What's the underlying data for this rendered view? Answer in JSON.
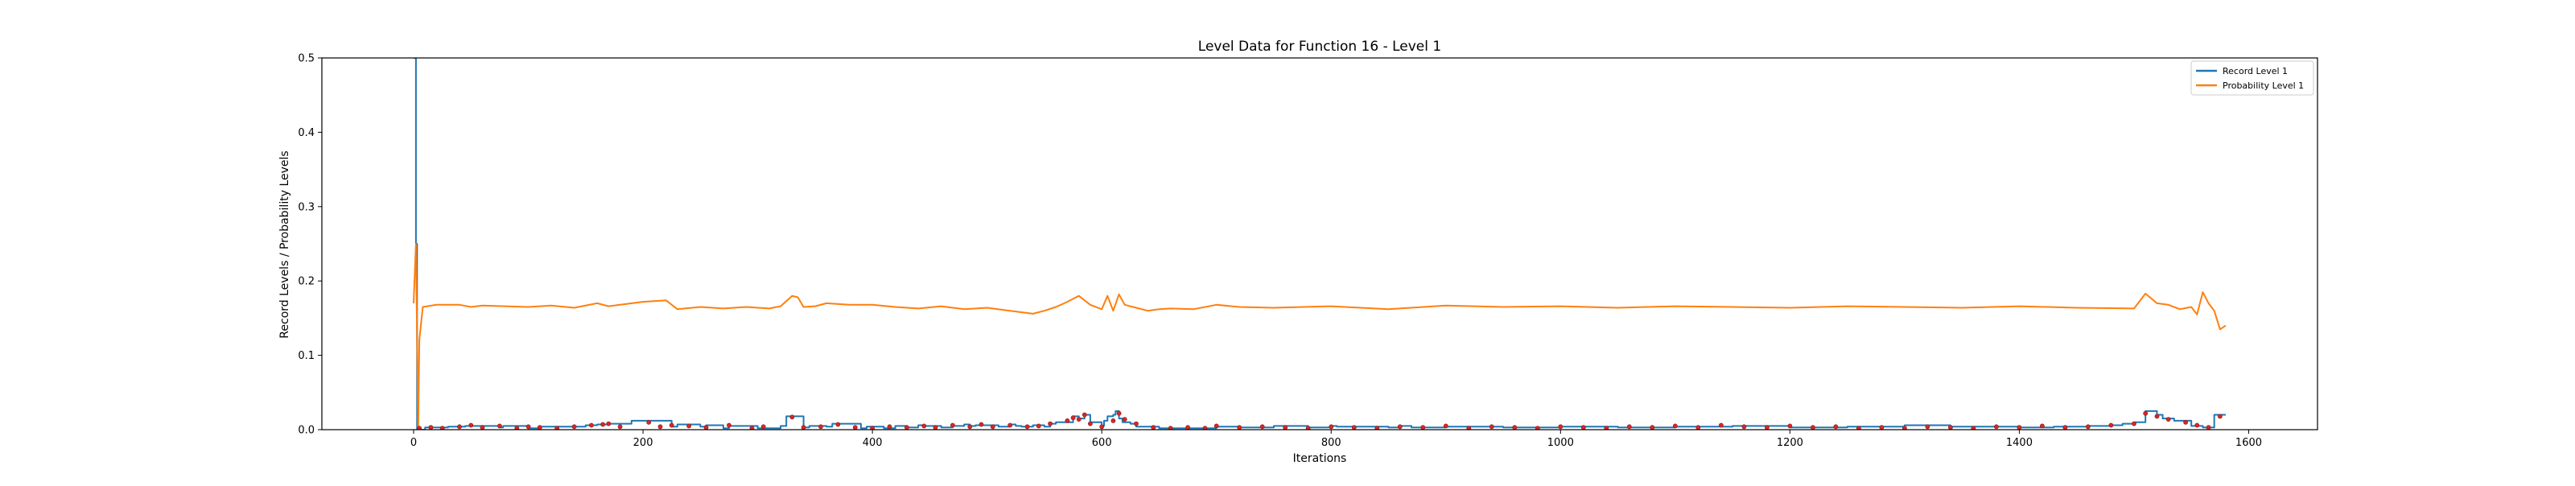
{
  "chart_data": {
    "type": "line",
    "title": "Level Data for Function 16 - Level 1",
    "xlabel": "Iterations",
    "ylabel": "Record Levels / Probability Levels",
    "xlim": [
      -80,
      1660
    ],
    "ylim": [
      0,
      0.5
    ],
    "x_ticks": [
      0,
      200,
      400,
      600,
      800,
      1000,
      1200,
      1400,
      1600
    ],
    "y_ticks": [
      0.0,
      0.1,
      0.2,
      0.3,
      0.4,
      0.5
    ],
    "x_tick_labels": [
      "0",
      "200",
      "400",
      "600",
      "800",
      "1000",
      "1200",
      "1400",
      "1600"
    ],
    "y_tick_labels": [
      "0.0",
      "0.1",
      "0.2",
      "0.3",
      "0.4",
      "0.5"
    ],
    "grid": false,
    "legend": {
      "position": "top-right",
      "entries": [
        "Record Level 1",
        "Probability Level 1"
      ]
    },
    "colors": {
      "record": "#1f77b4",
      "probability": "#ff7f0e",
      "marker": "#d62728"
    },
    "series": [
      {
        "name": "Record Level 1",
        "style": "step",
        "x": [
          0,
          2,
          3,
          10,
          30,
          45,
          50,
          75,
          78,
          100,
          110,
          140,
          150,
          160,
          170,
          185,
          190,
          200,
          205,
          225,
          230,
          250,
          255,
          270,
          275,
          300,
          320,
          325,
          330,
          335,
          340,
          345,
          360,
          365,
          370,
          390,
          395,
          410,
          420,
          430,
          440,
          445,
          460,
          470,
          480,
          485,
          490,
          510,
          520,
          525,
          530,
          540,
          550,
          555,
          560,
          575,
          580,
          585,
          590,
          600,
          602,
          605,
          610,
          612,
          615,
          618,
          625,
          630,
          650,
          700,
          720,
          750,
          780,
          800,
          805,
          850,
          860,
          870,
          900,
          950,
          1000,
          1050,
          1100,
          1150,
          1200,
          1250,
          1300,
          1320,
          1340,
          1400,
          1430,
          1460,
          1480,
          1490,
          1500,
          1510,
          1520,
          1525,
          1535,
          1540,
          1550,
          1560,
          1570,
          1580
        ],
        "y": [
          0.5,
          0.25,
          0.0,
          0.003,
          0.004,
          0.005,
          0.005,
          0.003,
          0.005,
          0.002,
          0.004,
          0.004,
          0.006,
          0.007,
          0.008,
          0.008,
          0.012,
          0.012,
          0.012,
          0.004,
          0.007,
          0.004,
          0.006,
          0.002,
          0.005,
          0.002,
          0.005,
          0.018,
          0.018,
          0.018,
          0.003,
          0.005,
          0.004,
          0.008,
          0.008,
          0.002,
          0.004,
          0.002,
          0.005,
          0.003,
          0.006,
          0.005,
          0.003,
          0.005,
          0.007,
          0.005,
          0.006,
          0.004,
          0.007,
          0.005,
          0.004,
          0.006,
          0.004,
          0.008,
          0.01,
          0.018,
          0.015,
          0.02,
          0.01,
          0.005,
          0.012,
          0.018,
          0.02,
          0.025,
          0.015,
          0.01,
          0.008,
          0.004,
          0.002,
          0.004,
          0.003,
          0.005,
          0.003,
          0.005,
          0.004,
          0.003,
          0.005,
          0.003,
          0.004,
          0.003,
          0.004,
          0.003,
          0.004,
          0.005,
          0.003,
          0.004,
          0.006,
          0.006,
          0.004,
          0.003,
          0.004,
          0.005,
          0.006,
          0.008,
          0.01,
          0.025,
          0.02,
          0.015,
          0.012,
          0.012,
          0.005,
          0.003,
          0.02,
          0.02
        ]
      },
      {
        "name": "Probability Level 1",
        "style": "line",
        "x": [
          0,
          2,
          4,
          5,
          8,
          20,
          40,
          50,
          60,
          80,
          100,
          120,
          140,
          160,
          170,
          180,
          200,
          220,
          230,
          250,
          270,
          290,
          310,
          320,
          330,
          335,
          340,
          350,
          360,
          380,
          400,
          420,
          440,
          460,
          480,
          500,
          520,
          540,
          550,
          560,
          570,
          580,
          590,
          600,
          605,
          610,
          615,
          620,
          630,
          640,
          650,
          660,
          680,
          700,
          720,
          750,
          800,
          850,
          900,
          950,
          1000,
          1050,
          1100,
          1150,
          1200,
          1250,
          1300,
          1350,
          1400,
          1450,
          1500,
          1510,
          1520,
          1530,
          1540,
          1550,
          1555,
          1560,
          1565,
          1570,
          1575,
          1580
        ],
        "y": [
          0.17,
          0.25,
          0.0,
          0.12,
          0.165,
          0.168,
          0.168,
          0.165,
          0.167,
          0.166,
          0.165,
          0.167,
          0.164,
          0.17,
          0.166,
          0.168,
          0.172,
          0.174,
          0.162,
          0.165,
          0.163,
          0.165,
          0.163,
          0.166,
          0.18,
          0.178,
          0.165,
          0.166,
          0.17,
          0.168,
          0.168,
          0.165,
          0.163,
          0.166,
          0.162,
          0.164,
          0.16,
          0.156,
          0.16,
          0.165,
          0.172,
          0.18,
          0.168,
          0.162,
          0.18,
          0.16,
          0.182,
          0.168,
          0.164,
          0.16,
          0.162,
          0.163,
          0.162,
          0.168,
          0.165,
          0.164,
          0.166,
          0.162,
          0.167,
          0.165,
          0.166,
          0.164,
          0.166,
          0.165,
          0.164,
          0.166,
          0.165,
          0.164,
          0.166,
          0.164,
          0.163,
          0.183,
          0.17,
          0.168,
          0.162,
          0.165,
          0.155,
          0.185,
          0.17,
          0.16,
          0.135,
          0.14
        ]
      }
    ],
    "markers": {
      "name": "Record points",
      "x": [
        5,
        15,
        25,
        40,
        50,
        60,
        75,
        90,
        100,
        110,
        125,
        140,
        155,
        165,
        170,
        180,
        205,
        215,
        225,
        240,
        255,
        275,
        295,
        305,
        330,
        340,
        355,
        370,
        385,
        400,
        415,
        430,
        445,
        455,
        470,
        485,
        495,
        505,
        520,
        535,
        545,
        555,
        570,
        575,
        580,
        585,
        590,
        600,
        610,
        615,
        620,
        630,
        645,
        660,
        675,
        690,
        700,
        720,
        740,
        760,
        780,
        800,
        820,
        840,
        860,
        880,
        900,
        920,
        940,
        960,
        980,
        1000,
        1020,
        1040,
        1060,
        1080,
        1100,
        1120,
        1140,
        1160,
        1180,
        1200,
        1220,
        1240,
        1260,
        1280,
        1300,
        1320,
        1340,
        1360,
        1380,
        1400,
        1420,
        1440,
        1460,
        1480,
        1500,
        1510,
        1520,
        1530,
        1545,
        1555,
        1565,
        1575
      ],
      "y": [
        0.002,
        0.003,
        0.002,
        0.004,
        0.006,
        0.003,
        0.005,
        0.002,
        0.004,
        0.003,
        0.002,
        0.004,
        0.006,
        0.007,
        0.008,
        0.004,
        0.01,
        0.004,
        0.006,
        0.005,
        0.003,
        0.006,
        0.002,
        0.004,
        0.017,
        0.003,
        0.004,
        0.007,
        0.003,
        0.002,
        0.004,
        0.003,
        0.005,
        0.003,
        0.006,
        0.004,
        0.007,
        0.004,
        0.006,
        0.004,
        0.005,
        0.008,
        0.012,
        0.016,
        0.014,
        0.02,
        0.008,
        0.004,
        0.012,
        0.022,
        0.014,
        0.008,
        0.003,
        0.002,
        0.003,
        0.002,
        0.005,
        0.003,
        0.004,
        0.003,
        0.002,
        0.004,
        0.003,
        0.002,
        0.004,
        0.003,
        0.005,
        0.002,
        0.004,
        0.003,
        0.002,
        0.004,
        0.003,
        0.002,
        0.004,
        0.003,
        0.005,
        0.003,
        0.006,
        0.004,
        0.003,
        0.005,
        0.003,
        0.004,
        0.002,
        0.003,
        0.002,
        0.004,
        0.003,
        0.002,
        0.004,
        0.003,
        0.005,
        0.003,
        0.004,
        0.006,
        0.008,
        0.022,
        0.018,
        0.014,
        0.01,
        0.006,
        0.003,
        0.018
      ]
    }
  }
}
